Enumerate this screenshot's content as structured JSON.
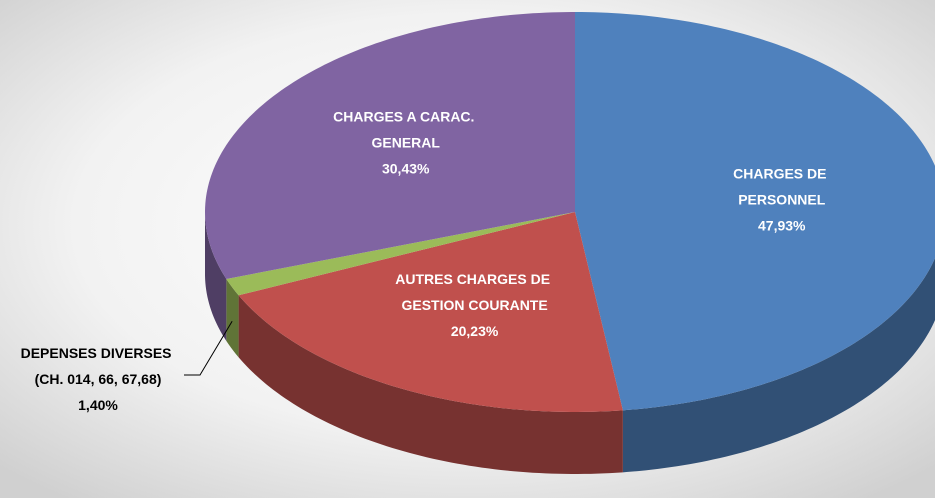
{
  "chart_data": {
    "type": "pie",
    "categories": [
      "CHARGES DE PERSONNEL",
      "AUTRES CHARGES DE GESTION COURANTE",
      "DEPENSES DIVERSES (CH. 014, 66, 67,68)",
      "CHARGES A CARAC. GENERAL"
    ],
    "values": [
      47.93,
      20.23,
      1.4,
      30.43
    ],
    "value_labels": [
      "47,93%",
      "20,23%",
      "1,40%",
      "30,43%"
    ],
    "colors": [
      "#4f81bd",
      "#c0504d",
      "#9bbb59",
      "#8064a2"
    ]
  }
}
